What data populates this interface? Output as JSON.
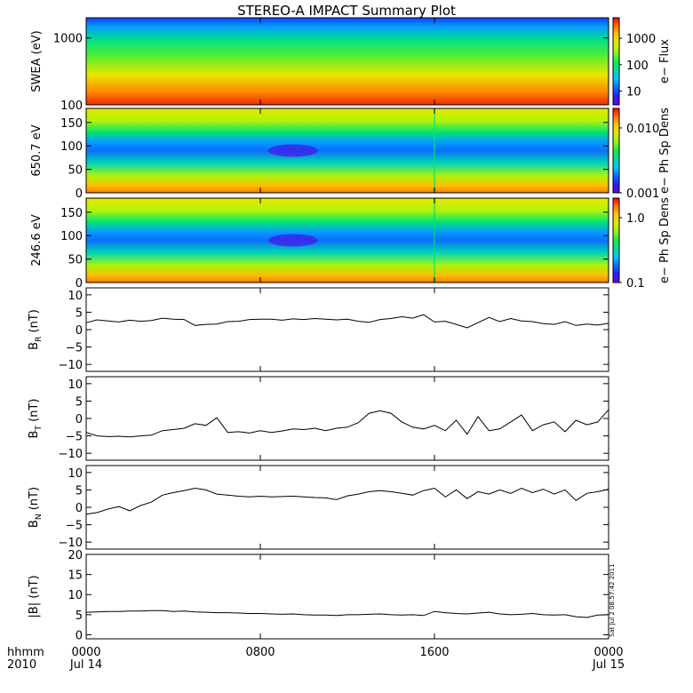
{
  "chart_data": {
    "title": "STEREO-A IMPACT Summary Plot",
    "type": "multi-panel",
    "time_axis": {
      "corner_labels": [
        "hhmm",
        "2010"
      ],
      "ticks": [
        {
          "hours": 0,
          "lines": [
            "0000",
            "Jul 14"
          ]
        },
        {
          "hours": 8,
          "lines": [
            "0800",
            ""
          ]
        },
        {
          "hours": 16,
          "lines": [
            "1600",
            ""
          ]
        },
        {
          "hours": 24,
          "lines": [
            "0000",
            "Jul 15"
          ]
        }
      ],
      "range_hours": [
        0,
        24
      ]
    },
    "spectrogram_panels": [
      {
        "type": "heatmap",
        "ylabel": "SWEA (eV)",
        "yscale": "log",
        "ylim": [
          100,
          2000
        ],
        "yticks": [
          {
            "v": 1000,
            "t": "1000"
          },
          {
            "v": 100,
            "t": "100"
          }
        ],
        "colorbar": {
          "label": "e− Flux",
          "scale": "log",
          "range": [
            3,
            6000
          ],
          "ticks": [
            {
              "v": 1000,
              "t": "1000"
            },
            {
              "v": 100,
              "t": "100"
            },
            {
              "v": 10,
              "t": "10"
            }
          ]
        }
      },
      {
        "type": "heatmap",
        "ylabel": "650.7 eV",
        "ylim": [
          0,
          180
        ],
        "yticks": [
          {
            "v": 150,
            "t": "150"
          },
          {
            "v": 100,
            "t": "100"
          },
          {
            "v": 50,
            "t": "50"
          },
          {
            "v": 0,
            "t": "0"
          }
        ],
        "colorbar": {
          "label": "e− Ph Sp Dens",
          "scale": "log",
          "range": [
            0.001,
            0.02
          ],
          "ticks": [
            {
              "v": 0.01,
              "t": "0.010"
            },
            {
              "v": 0.001,
              "t": "0.001"
            }
          ]
        }
      },
      {
        "type": "heatmap",
        "ylabel": "246.6 eV",
        "ylim": [
          0,
          180
        ],
        "yticks": [
          {
            "v": 150,
            "t": "150"
          },
          {
            "v": 100,
            "t": "100"
          },
          {
            "v": 50,
            "t": "50"
          },
          {
            "v": 0,
            "t": "0"
          }
        ],
        "colorbar": {
          "label": "e− Ph Sp Dens",
          "scale": "log",
          "range": [
            0.1,
            2
          ],
          "ticks": [
            {
              "v": 1.0,
              "t": "1.0"
            },
            {
              "v": 0.1,
              "t": "0.1"
            }
          ]
        }
      }
    ],
    "line_panels": [
      {
        "type": "line",
        "ylabel": {
          "main": "B",
          "sub": "R",
          "unit": " (nT)"
        },
        "ylim": [
          -12,
          12
        ],
        "yticks": [
          {
            "v": 10,
            "t": "10"
          },
          {
            "v": 5,
            "t": "5"
          },
          {
            "v": 0,
            "t": "0"
          },
          {
            "v": -5,
            "t": "−5"
          },
          {
            "v": -10,
            "t": "−10"
          }
        ],
        "x": [
          0,
          0.5,
          1,
          1.5,
          2,
          2.5,
          3,
          3.5,
          4,
          4.5,
          5,
          5.5,
          6,
          6.5,
          7,
          7.5,
          8,
          8.5,
          9,
          9.5,
          10,
          10.5,
          11,
          11.5,
          12,
          12.5,
          13,
          13.5,
          14,
          14.5,
          15,
          15.5,
          16,
          16.5,
          17,
          17.5,
          18,
          18.5,
          19,
          19.5,
          20,
          20.5,
          21,
          21.5,
          22,
          22.5,
          23,
          23.5,
          24
        ],
        "y": [
          2,
          2.8,
          2.5,
          2.2,
          2.7,
          2.4,
          2.6,
          3.3,
          3.0,
          2.9,
          1.2,
          1.5,
          1.6,
          2.3,
          2.4,
          2.9,
          3.0,
          3.0,
          2.7,
          3.1,
          2.9,
          3.2,
          3.0,
          2.8,
          3.0,
          2.4,
          2.1,
          2.9,
          3.2,
          3.7,
          3.3,
          4.3,
          2.2,
          2.4,
          1.5,
          0.5,
          2.0,
          3.5,
          2.3,
          3.2,
          2.5,
          2.3,
          1.7,
          1.5,
          2.3,
          1.2,
          1.6,
          1.3,
          1.8
        ]
      },
      {
        "type": "line",
        "ylabel": {
          "main": "B",
          "sub": "T",
          "unit": " (nT)"
        },
        "ylim": [
          -12,
          12
        ],
        "yticks": [
          {
            "v": 10,
            "t": "10"
          },
          {
            "v": 5,
            "t": "5"
          },
          {
            "v": 0,
            "t": "0"
          },
          {
            "v": -5,
            "t": "−5"
          },
          {
            "v": -10,
            "t": "−10"
          }
        ],
        "x": [
          0,
          0.5,
          1,
          1.5,
          2,
          2.5,
          3,
          3.5,
          4,
          4.5,
          5,
          5.5,
          6,
          6.5,
          7,
          7.5,
          8,
          8.5,
          9,
          9.5,
          10,
          10.5,
          11,
          11.5,
          12,
          12.5,
          13,
          13.5,
          14,
          14.5,
          15,
          15.5,
          16,
          16.5,
          17,
          17.5,
          18,
          18.5,
          19,
          19.5,
          20,
          20.5,
          21,
          21.5,
          22,
          22.5,
          23,
          23.5,
          24
        ],
        "y": [
          -4,
          -5,
          -5.2,
          -5.1,
          -5.3,
          -5.0,
          -4.8,
          -3.5,
          -3.2,
          -2.8,
          -1.5,
          -2.0,
          0.2,
          -4.0,
          -3.8,
          -4.2,
          -3.5,
          -4.0,
          -3.6,
          -3.0,
          -3.2,
          -2.8,
          -3.5,
          -2.8,
          -2.5,
          -1.2,
          1.5,
          2.2,
          1.5,
          -1.0,
          -2.5,
          -3.0,
          -2.0,
          -3.5,
          -0.5,
          -4.5,
          0.5,
          -3.5,
          -3.0,
          -1.0,
          1.0,
          -3.5,
          -1.8,
          -1.0,
          -3.8,
          -0.5,
          -1.8,
          -1.0,
          2.5
        ]
      },
      {
        "type": "line",
        "ylabel": {
          "main": "B",
          "sub": "N",
          "unit": " (nT)"
        },
        "ylim": [
          -12,
          12
        ],
        "yticks": [
          {
            "v": 10,
            "t": "10"
          },
          {
            "v": 5,
            "t": "5"
          },
          {
            "v": 0,
            "t": "0"
          },
          {
            "v": -5,
            "t": "−5"
          },
          {
            "v": -10,
            "t": "−10"
          }
        ],
        "x": [
          0,
          0.5,
          1,
          1.5,
          2,
          2.5,
          3,
          3.5,
          4,
          4.5,
          5,
          5.5,
          6,
          6.5,
          7,
          7.5,
          8,
          8.5,
          9,
          9.5,
          10,
          10.5,
          11,
          11.5,
          12,
          12.5,
          13,
          13.5,
          14,
          14.5,
          15,
          15.5,
          16,
          16.5,
          17,
          17.5,
          18,
          18.5,
          19,
          19.5,
          20,
          20.5,
          21,
          21.5,
          22,
          22.5,
          23,
          23.5,
          24
        ],
        "y": [
          -2,
          -1.5,
          -0.5,
          0.2,
          -1.0,
          0.5,
          1.5,
          3.5,
          4.2,
          4.8,
          5.5,
          5.0,
          3.8,
          3.5,
          3.2,
          3.0,
          3.2,
          3.0,
          3.1,
          3.2,
          3.0,
          2.8,
          2.7,
          2.2,
          3.3,
          3.8,
          4.5,
          4.8,
          4.5,
          4.0,
          3.5,
          4.8,
          5.5,
          3.0,
          5.0,
          2.5,
          4.5,
          3.8,
          5.0,
          4.0,
          5.5,
          4.2,
          5.2,
          3.8,
          5.0,
          2.0,
          4.0,
          4.5,
          5.2
        ]
      },
      {
        "type": "line",
        "ylabel": {
          "main": "|B|",
          "sub": "",
          "unit": " (nT)"
        },
        "ylim": [
          -1,
          20
        ],
        "yticks": [
          {
            "v": 20,
            "t": "20"
          },
          {
            "v": 15,
            "t": "15"
          },
          {
            "v": 10,
            "t": "10"
          },
          {
            "v": 5,
            "t": "5"
          },
          {
            "v": 0,
            "t": "0"
          }
        ],
        "x": [
          0,
          0.5,
          1,
          1.5,
          2,
          2.5,
          3,
          3.5,
          4,
          4.5,
          5,
          5.5,
          6,
          6.5,
          7,
          7.5,
          8,
          8.5,
          9,
          9.5,
          10,
          10.5,
          11,
          11.5,
          12,
          12.5,
          13,
          13.5,
          14,
          14.5,
          15,
          15.5,
          16,
          16.5,
          17,
          17.5,
          18,
          18.5,
          19,
          19.5,
          20,
          20.5,
          21,
          21.5,
          22,
          22.5,
          23,
          23.5,
          24
        ],
        "y": [
          5.6,
          5.7,
          5.8,
          5.8,
          5.9,
          5.9,
          6.0,
          6.0,
          5.8,
          5.9,
          5.7,
          5.6,
          5.5,
          5.5,
          5.4,
          5.3,
          5.3,
          5.2,
          5.1,
          5.2,
          5.0,
          4.9,
          4.9,
          4.8,
          5.0,
          5.0,
          5.1,
          5.2,
          5.0,
          4.9,
          5.0,
          4.8,
          5.8,
          5.5,
          5.3,
          5.2,
          5.4,
          5.6,
          5.2,
          5.0,
          5.1,
          5.3,
          5.0,
          4.9,
          5.0,
          4.5,
          4.3,
          4.9,
          5.0
        ]
      }
    ],
    "side_stamp": "Sat Jul  2 08:57:42 2011"
  }
}
